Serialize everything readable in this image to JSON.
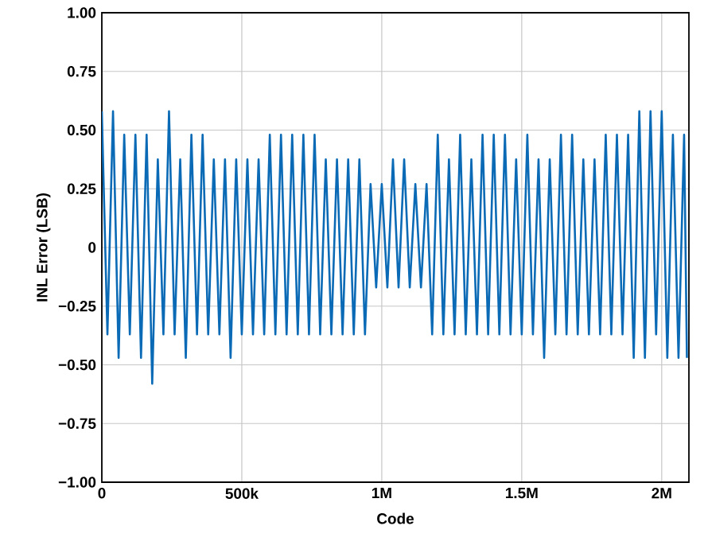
{
  "chart_data": {
    "type": "line",
    "xlabel": "Code",
    "ylabel": "INL Error (LSB)",
    "color": "#0a6ab5",
    "grid": true,
    "xlim": [
      0,
      2097152
    ],
    "xticks": [
      0,
      {
        "value": 500000,
        "label": "500k"
      },
      {
        "value": 1000000,
        "label": "1M"
      },
      {
        "value": 1500000,
        "label": "1.5M"
      },
      {
        "value": 2000000,
        "label": "2M"
      }
    ],
    "ylim": [
      -1,
      1
    ],
    "yticks": [
      {
        "value": -1,
        "label": "−1.00"
      },
      {
        "value": -0.75,
        "label": "−0.75"
      },
      {
        "value": -0.5,
        "label": "−0.50"
      },
      {
        "value": -0.25,
        "label": "−0.25"
      },
      0,
      {
        "value": 0.25,
        "label": "0.25"
      },
      {
        "value": 0.5,
        "label": "0.50"
      },
      {
        "value": 0.75,
        "label": "0.75"
      },
      {
        "value": 1,
        "label": "1.00"
      }
    ],
    "x": [
      0,
      20000,
      40000,
      60000,
      80000,
      100000,
      120000,
      140000,
      160000,
      180000,
      200000,
      220000,
      240000,
      260000,
      280000,
      300000,
      320000,
      340000,
      360000,
      380000,
      400000,
      420000,
      440000,
      460000,
      480000,
      500000,
      520000,
      540000,
      560000,
      580000,
      600000,
      620000,
      640000,
      660000,
      680000,
      700000,
      720000,
      740000,
      760000,
      780000,
      800000,
      820000,
      840000,
      860000,
      880000,
      900000,
      920000,
      940000,
      960000,
      980000,
      1000000,
      1020000,
      1040000,
      1060000,
      1080000,
      1100000,
      1120000,
      1140000,
      1160000,
      1180000,
      1200000,
      1220000,
      1240000,
      1260000,
      1280000,
      1300000,
      1320000,
      1340000,
      1360000,
      1380000,
      1400000,
      1420000,
      1440000,
      1460000,
      1480000,
      1500000,
      1520000,
      1540000,
      1560000,
      1580000,
      1600000,
      1620000,
      1640000,
      1660000,
      1680000,
      1700000,
      1720000,
      1740000,
      1760000,
      1780000,
      1800000,
      1820000,
      1840000,
      1860000,
      1880000,
      1900000,
      1920000,
      1940000,
      1960000,
      1980000,
      2000000,
      2020000,
      2040000,
      2060000,
      2080000,
      2090000
    ],
    "values": [
      0.58,
      -0.37,
      0.58,
      -0.47,
      0.48,
      -0.37,
      0.48,
      -0.47,
      0.48,
      -0.58,
      0.375,
      -0.37,
      0.58,
      -0.37,
      0.375,
      -0.47,
      0.48,
      -0.37,
      0.48,
      -0.37,
      0.375,
      -0.37,
      0.375,
      -0.47,
      0.375,
      -0.37,
      0.375,
      -0.37,
      0.375,
      -0.37,
      0.48,
      -0.37,
      0.48,
      -0.37,
      0.48,
      -0.37,
      0.48,
      -0.37,
      0.48,
      -0.37,
      0.375,
      -0.37,
      0.375,
      -0.37,
      0.375,
      -0.37,
      0.375,
      -0.37,
      0.27,
      -0.17,
      0.27,
      -0.17,
      0.375,
      -0.17,
      0.375,
      -0.17,
      0.27,
      -0.17,
      0.27,
      -0.37,
      0.48,
      -0.37,
      0.375,
      -0.37,
      0.48,
      -0.37,
      0.375,
      -0.37,
      0.48,
      -0.37,
      0.48,
      -0.37,
      0.48,
      -0.37,
      0.375,
      -0.37,
      0.48,
      -0.37,
      0.375,
      -0.47,
      0.375,
      -0.37,
      0.48,
      -0.37,
      0.48,
      -0.37,
      0.375,
      -0.37,
      0.375,
      -0.37,
      0.48,
      -0.37,
      0.48,
      -0.37,
      0.48,
      -0.47,
      0.58,
      -0.47,
      0.58,
      -0.37,
      0.58,
      -0.47,
      0.48,
      -0.47,
      0.48,
      -0.47
    ]
  }
}
